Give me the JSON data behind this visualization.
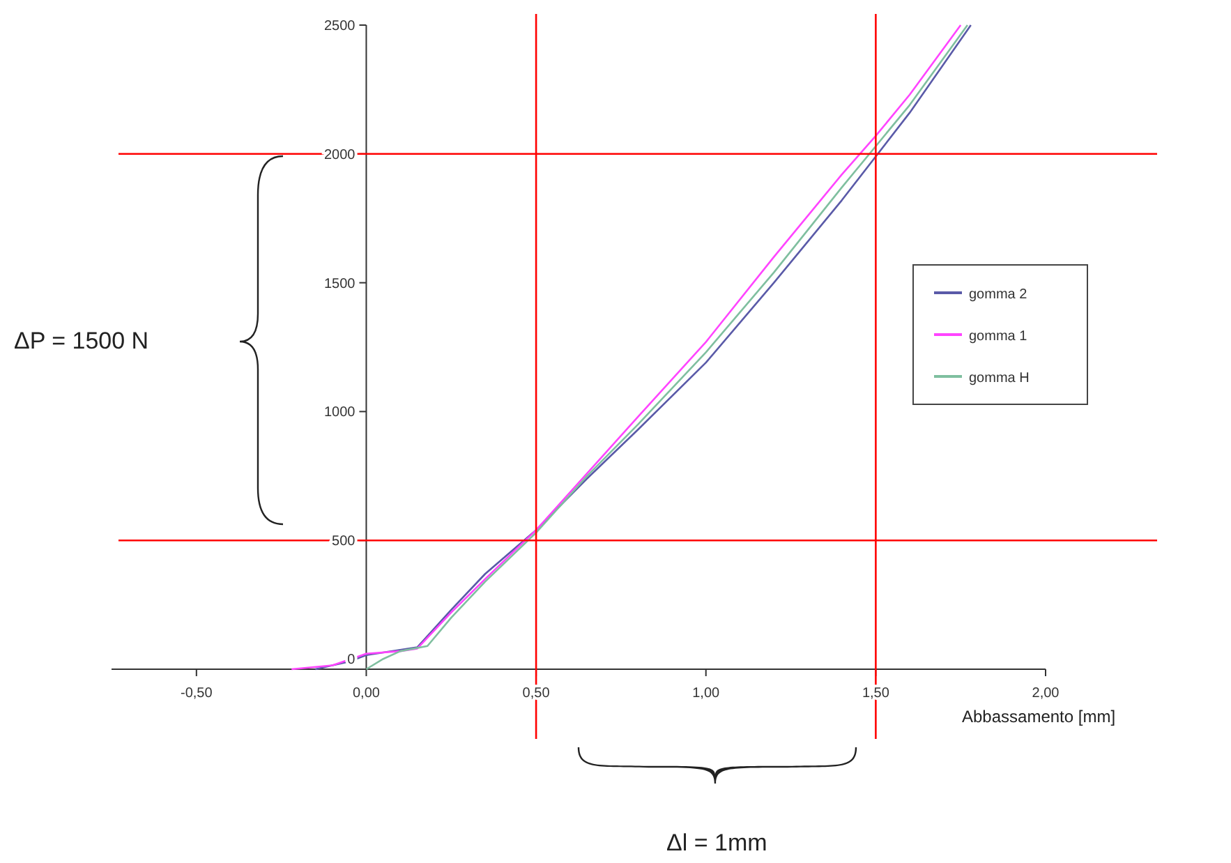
{
  "chart_data": {
    "type": "line",
    "xlabel": "Abbassamento  [mm]",
    "annotations": [
      "ΔP = 1500  N",
      "Δl = 1mm"
    ],
    "xlim": [
      -0.75,
      2
    ],
    "ylim": [
      0,
      2500
    ],
    "xticks": [
      {
        "value": -0.5,
        "label": "-0,50"
      },
      {
        "value": 0,
        "label": "0,00"
      },
      {
        "value": 0.5,
        "label": "0,50"
      },
      {
        "value": 1,
        "label": "1,00"
      },
      {
        "value": 1.5,
        "label": "1,50"
      },
      {
        "value": 2,
        "label": "2,00"
      }
    ],
    "yticks": [
      0,
      500,
      1000,
      1500,
      2000,
      2500
    ],
    "legend": "right",
    "grid": false,
    "marker": "none",
    "line_style": "solid",
    "series": [
      {
        "name": "gomma 2",
        "color": "#5a5aa8",
        "x": [
          -0.15,
          -0.05,
          0,
          0.1,
          0.15,
          0.25,
          0.35,
          0.5,
          0.65,
          0.8,
          1.0,
          1.2,
          1.4,
          1.5,
          1.6,
          1.78
        ],
        "values": [
          0,
          30,
          55,
          75,
          85,
          230,
          370,
          540,
          740,
          930,
          1190,
          1500,
          1820,
          1990,
          2160,
          2500
        ]
      },
      {
        "name": "gomma 1",
        "color": "#ff44ff",
        "x": [
          -0.22,
          -0.1,
          0,
          0.1,
          0.15,
          0.25,
          0.35,
          0.5,
          0.65,
          0.8,
          1.0,
          1.2,
          1.4,
          1.5,
          1.6,
          1.75
        ],
        "values": [
          0,
          15,
          60,
          70,
          80,
          220,
          350,
          540,
          760,
          980,
          1270,
          1600,
          1920,
          2070,
          2230,
          2500
        ]
      },
      {
        "name": "gomma H",
        "color": "#7fbf9f",
        "x": [
          0,
          0.05,
          0.1,
          0.18,
          0.25,
          0.35,
          0.5,
          0.65,
          0.8,
          1.0,
          1.2,
          1.4,
          1.5,
          1.6,
          1.77
        ],
        "values": [
          0,
          40,
          70,
          90,
          200,
          340,
          530,
          750,
          950,
          1230,
          1540,
          1870,
          2030,
          2190,
          2500
        ]
      }
    ],
    "ref_lines": [
      {
        "axis": "y",
        "value": 500,
        "color": "#ff0000"
      },
      {
        "axis": "y",
        "value": 2000,
        "color": "#ff0000"
      },
      {
        "axis": "x",
        "value": 0.5,
        "color": "#ff0000"
      },
      {
        "axis": "x",
        "value": 1.5,
        "color": "#ff0000"
      }
    ]
  }
}
